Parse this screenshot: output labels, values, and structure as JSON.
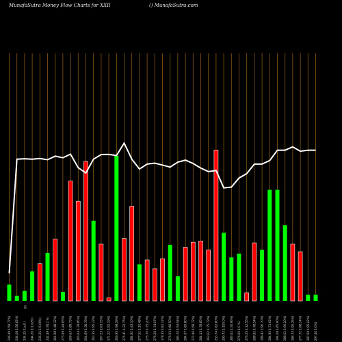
{
  "header": {
    "left_title": "MunafaSutra  Money Flow  Charts for XXII",
    "right_title": "() MunafaSutra.com"
  },
  "colors": {
    "background": "#000000",
    "gridline": "#8a5a14",
    "up_bar": "#00ff00",
    "down_bar": "#ff0000",
    "bar_outline": "#ffffff",
    "price_line": "#ffffff"
  },
  "chart_data": {
    "type": "bar",
    "title": "MunafaSutra  Money Flow  Charts for XXII",
    "grid": true,
    "x_tick_labels": [
      "246.49 1(59.77%)",
      "244.08 1(56.62%)",
      "244.25 1(a.8 )",
      "244.26 1(1.02%)",
      "236.35 1(5.09%)",
      "242.49 1(76.1 %)",
      "264.98 1(48.32%)",
      "273.99 1(44.83%)",
      "269.63 1(89.73%)",
      "265.64 1(78.85%)",
      "264.69 1(38.78%)",
      "263.35 1(95.23%)",
      "267.23 1(63.15%)",
      "271.22 1(52.19%)",
      "266.95 1(98.29%)",
      "276.41 1(32.75%)",
      "284.92 1(43.10%)",
      "277.52 1(10.48%)",
      "275.70 1(75.20%)",
      "276.26 1(74.07%)",
      "278.35 1(81.12%)",
      "275.03 1(66.50%)",
      "285.70 1(53.54%)",
      "284.07 1(60.80%)",
      "272.46 1(58.72%)",
      "284.13 1(78.85%)",
      "263.62 1(75.73%)",
      "253.74 1(62.80%)",
      "290.72 1(100.0%)",
      "283.62 1(30.96%)",
      "276.60 1(0 %)",
      "276.25 1(12.55%)",
      "288.82 1(78.54%)",
      "288.42 1(90.70%)",
      "284.90 1(71.02%)",
      "294.08 1(65.90%)",
      "288.02 1(90.20%)",
      "286.73 1(95.25%)",
      "277.72 1(68.14%)",
      "287.68 1(95.02%)",
      "297.46 1(0%)"
    ],
    "sub_tick_label": "(0)",
    "x_index": [
      1,
      2,
      3,
      4,
      5,
      6,
      7,
      8,
      9,
      10,
      11,
      12,
      13,
      14,
      15,
      16,
      17,
      18,
      19,
      20,
      21,
      22,
      23,
      24,
      25,
      26,
      27,
      28,
      29,
      30,
      31,
      32,
      33,
      34,
      35,
      36,
      37,
      38,
      39,
      40,
      41
    ],
    "series": [
      {
        "kind": "money_flow_bars",
        "direction": [
          "up",
          "up",
          "up",
          "up",
          "down",
          "up",
          "down",
          "up",
          "down",
          "down",
          "down",
          "up",
          "down",
          "down",
          "up",
          "down",
          "down",
          "up",
          "down",
          "down",
          "down",
          "up",
          "up",
          "down",
          "down",
          "down",
          "down",
          "down",
          "up",
          "up",
          "up",
          "down",
          "down",
          "up",
          "up",
          "up",
          "up",
          "down",
          "down",
          "up",
          "up"
        ],
        "values": [
          26,
          8,
          16,
          47,
          59,
          76,
          98,
          14,
          190,
          158,
          221,
          127,
          90,
          5,
          230,
          99,
          150,
          58,
          65,
          51,
          67,
          89,
          39,
          85,
          93,
          95,
          81,
          239,
          108,
          69,
          75,
          13,
          92,
          81,
          176,
          176,
          120,
          90,
          78,
          10,
          10
        ],
        "ylim": [
          0,
          260
        ]
      },
      {
        "kind": "price_line",
        "values": [
          0.14,
          0.715,
          0.717,
          0.715,
          0.718,
          0.712,
          0.73,
          0.722,
          0.74,
          0.672,
          0.645,
          0.715,
          0.738,
          0.739,
          0.733,
          0.796,
          0.715,
          0.665,
          0.69,
          0.695,
          0.685,
          0.675,
          0.7,
          0.71,
          0.693,
          0.67,
          0.652,
          0.658,
          0.57,
          0.574,
          0.62,
          0.642,
          0.69,
          0.69,
          0.708,
          0.76,
          0.76,
          0.777,
          0.755,
          0.76,
          0.76
        ],
        "ylim": [
          0,
          1
        ]
      }
    ]
  }
}
